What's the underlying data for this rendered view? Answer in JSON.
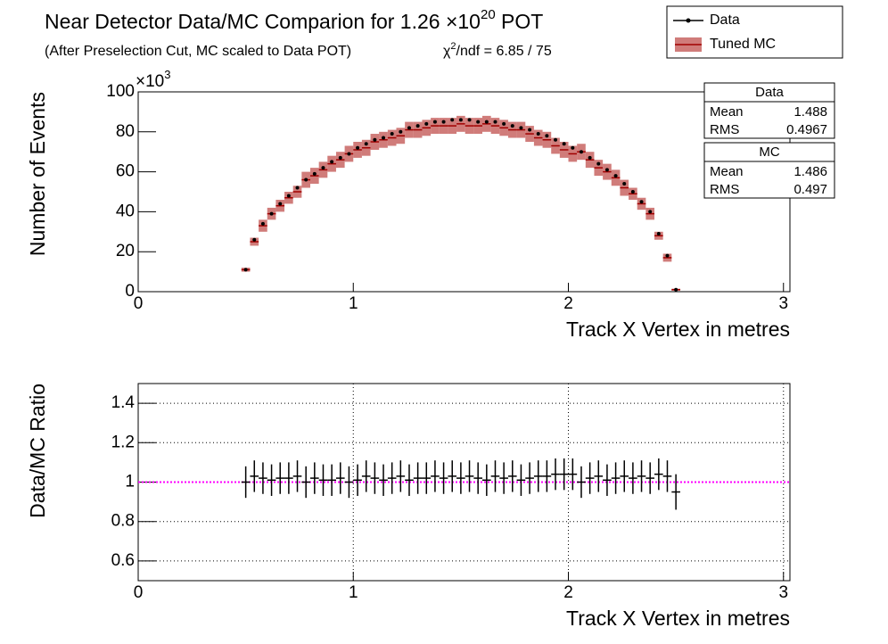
{
  "chart_data": [
    {
      "type": "errorbar",
      "title": [
        "Near Detector Data/MC Comparion for 1.26 ×10",
        "20",
        " POT"
      ],
      "subtitle": "(After Preselection Cut, MC scaled to Data POT)",
      "chi2": [
        "χ",
        "2",
        "/ndf = 6.85 / 75"
      ],
      "multiplier": [
        "×10",
        "3"
      ],
      "xlabel": "Track X Vertex in metres",
      "ylabel": "Number of Events",
      "legend": "top-right",
      "x": [
        0.5,
        0.54,
        0.58,
        0.62,
        0.66,
        0.7,
        0.74,
        0.78,
        0.82,
        0.86,
        0.9,
        0.94,
        0.98,
        1.02,
        1.06,
        1.1,
        1.14,
        1.18,
        1.22,
        1.26,
        1.3,
        1.34,
        1.38,
        1.42,
        1.46,
        1.5,
        1.54,
        1.58,
        1.62,
        1.66,
        1.7,
        1.74,
        1.78,
        1.82,
        1.86,
        1.9,
        1.94,
        1.98,
        2.02,
        2.06,
        2.1,
        2.14,
        2.18,
        2.22,
        2.26,
        2.3,
        2.34,
        2.38,
        2.42,
        2.46,
        2.5
      ],
      "bin_width": 0.04,
      "series": [
        {
          "name": "Data",
          "color": "#000000",
          "style": "points",
          "values": [
            11,
            26,
            34,
            39,
            44,
            48,
            52,
            56,
            59,
            62,
            65,
            67,
            69,
            72,
            74,
            76,
            77,
            79,
            80,
            82,
            83,
            84,
            85,
            85,
            86,
            86,
            86,
            85,
            85,
            85,
            84,
            83,
            82,
            81,
            79,
            78,
            76,
            74,
            72,
            70,
            67,
            64,
            61,
            58,
            54,
            50,
            45,
            40,
            29,
            18,
            1
          ]
        },
        {
          "name": "Tuned MC",
          "color": "#c0504d",
          "style": "boxes",
          "values": [
            11,
            25,
            33,
            39,
            43,
            47,
            50,
            56,
            58,
            61,
            64,
            66,
            69,
            71,
            72,
            75,
            76,
            77,
            78,
            81,
            81,
            82,
            83,
            83,
            83,
            84,
            83,
            83,
            84,
            83,
            82,
            81,
            81,
            79,
            77,
            76,
            73,
            71,
            69,
            70,
            66,
            62,
            60,
            57,
            52,
            49,
            44,
            39,
            28,
            17,
            1
          ],
          "errors": [
            1,
            2,
            3,
            3,
            3,
            3,
            3,
            4,
            4,
            4,
            4,
            4,
            4,
            4,
            4,
            4,
            4,
            4,
            4,
            4,
            4,
            4,
            4,
            4,
            4,
            4,
            4,
            4,
            4,
            4,
            4,
            4,
            4,
            4,
            4,
            4,
            4,
            4,
            4,
            4,
            4,
            4,
            4,
            4,
            4,
            3,
            3,
            3,
            2,
            2,
            0.5
          ]
        }
      ],
      "stats": [
        {
          "title": "Data",
          "color": "#000000",
          "labels": [
            "Mean",
            "RMS"
          ],
          "values": [
            1.488,
            0.4967
          ]
        },
        {
          "title": "MC",
          "color": "#ff0000",
          "labels": [
            "Mean",
            "RMS"
          ],
          "values": [
            1.486,
            0.497
          ]
        }
      ],
      "xlim": [
        0,
        3.03
      ],
      "xticks": [
        0,
        1,
        2,
        3
      ],
      "ylim": [
        0,
        100
      ],
      "yticks": [
        0,
        20,
        40,
        60,
        80,
        100
      ],
      "grid": false
    },
    {
      "type": "errorbar",
      "xlabel": "Track X Vertex in metres",
      "ylabel": "Data/MC Ratio",
      "x": [
        0.5,
        0.54,
        0.58,
        0.62,
        0.66,
        0.7,
        0.74,
        0.78,
        0.82,
        0.86,
        0.9,
        0.94,
        0.98,
        1.02,
        1.06,
        1.1,
        1.14,
        1.18,
        1.22,
        1.26,
        1.3,
        1.34,
        1.38,
        1.42,
        1.46,
        1.5,
        1.54,
        1.58,
        1.62,
        1.66,
        1.7,
        1.74,
        1.78,
        1.82,
        1.86,
        1.9,
        1.94,
        1.98,
        2.02,
        2.06,
        2.1,
        2.14,
        2.18,
        2.22,
        2.26,
        2.3,
        2.34,
        2.38,
        2.42,
        2.46,
        2.5
      ],
      "bin_width": 0.04,
      "series": [
        {
          "color": "#000000",
          "style": "errorbars",
          "values": [
            1.0,
            1.03,
            1.02,
            1.01,
            1.02,
            1.02,
            1.03,
            1.0,
            1.02,
            1.01,
            1.01,
            1.02,
            1.0,
            1.01,
            1.03,
            1.02,
            1.01,
            1.02,
            1.03,
            1.01,
            1.02,
            1.02,
            1.03,
            1.02,
            1.03,
            1.02,
            1.03,
            1.02,
            1.01,
            1.03,
            1.02,
            1.03,
            1.01,
            1.02,
            1.03,
            1.03,
            1.04,
            1.04,
            1.04,
            1.0,
            1.02,
            1.03,
            1.01,
            1.02,
            1.03,
            1.02,
            1.03,
            1.02,
            1.04,
            1.03,
            0.95
          ],
          "errors": [
            0.08,
            0.08,
            0.08,
            0.08,
            0.08,
            0.08,
            0.08,
            0.08,
            0.08,
            0.08,
            0.08,
            0.08,
            0.08,
            0.08,
            0.08,
            0.08,
            0.08,
            0.08,
            0.08,
            0.08,
            0.08,
            0.08,
            0.08,
            0.08,
            0.08,
            0.08,
            0.08,
            0.08,
            0.08,
            0.08,
            0.08,
            0.08,
            0.08,
            0.08,
            0.08,
            0.08,
            0.08,
            0.08,
            0.08,
            0.08,
            0.08,
            0.08,
            0.08,
            0.08,
            0.08,
            0.08,
            0.08,
            0.08,
            0.08,
            0.08,
            0.09
          ]
        }
      ],
      "reference_line": {
        "value": 1,
        "color": "#ff00ff"
      },
      "xlim": [
        0,
        3.03
      ],
      "xticks": [
        0,
        1,
        2,
        3
      ],
      "ylim": [
        0.5,
        1.5
      ],
      "yticks": [
        0.6,
        0.8,
        1,
        1.2,
        1.4
      ],
      "grid": true
    }
  ]
}
